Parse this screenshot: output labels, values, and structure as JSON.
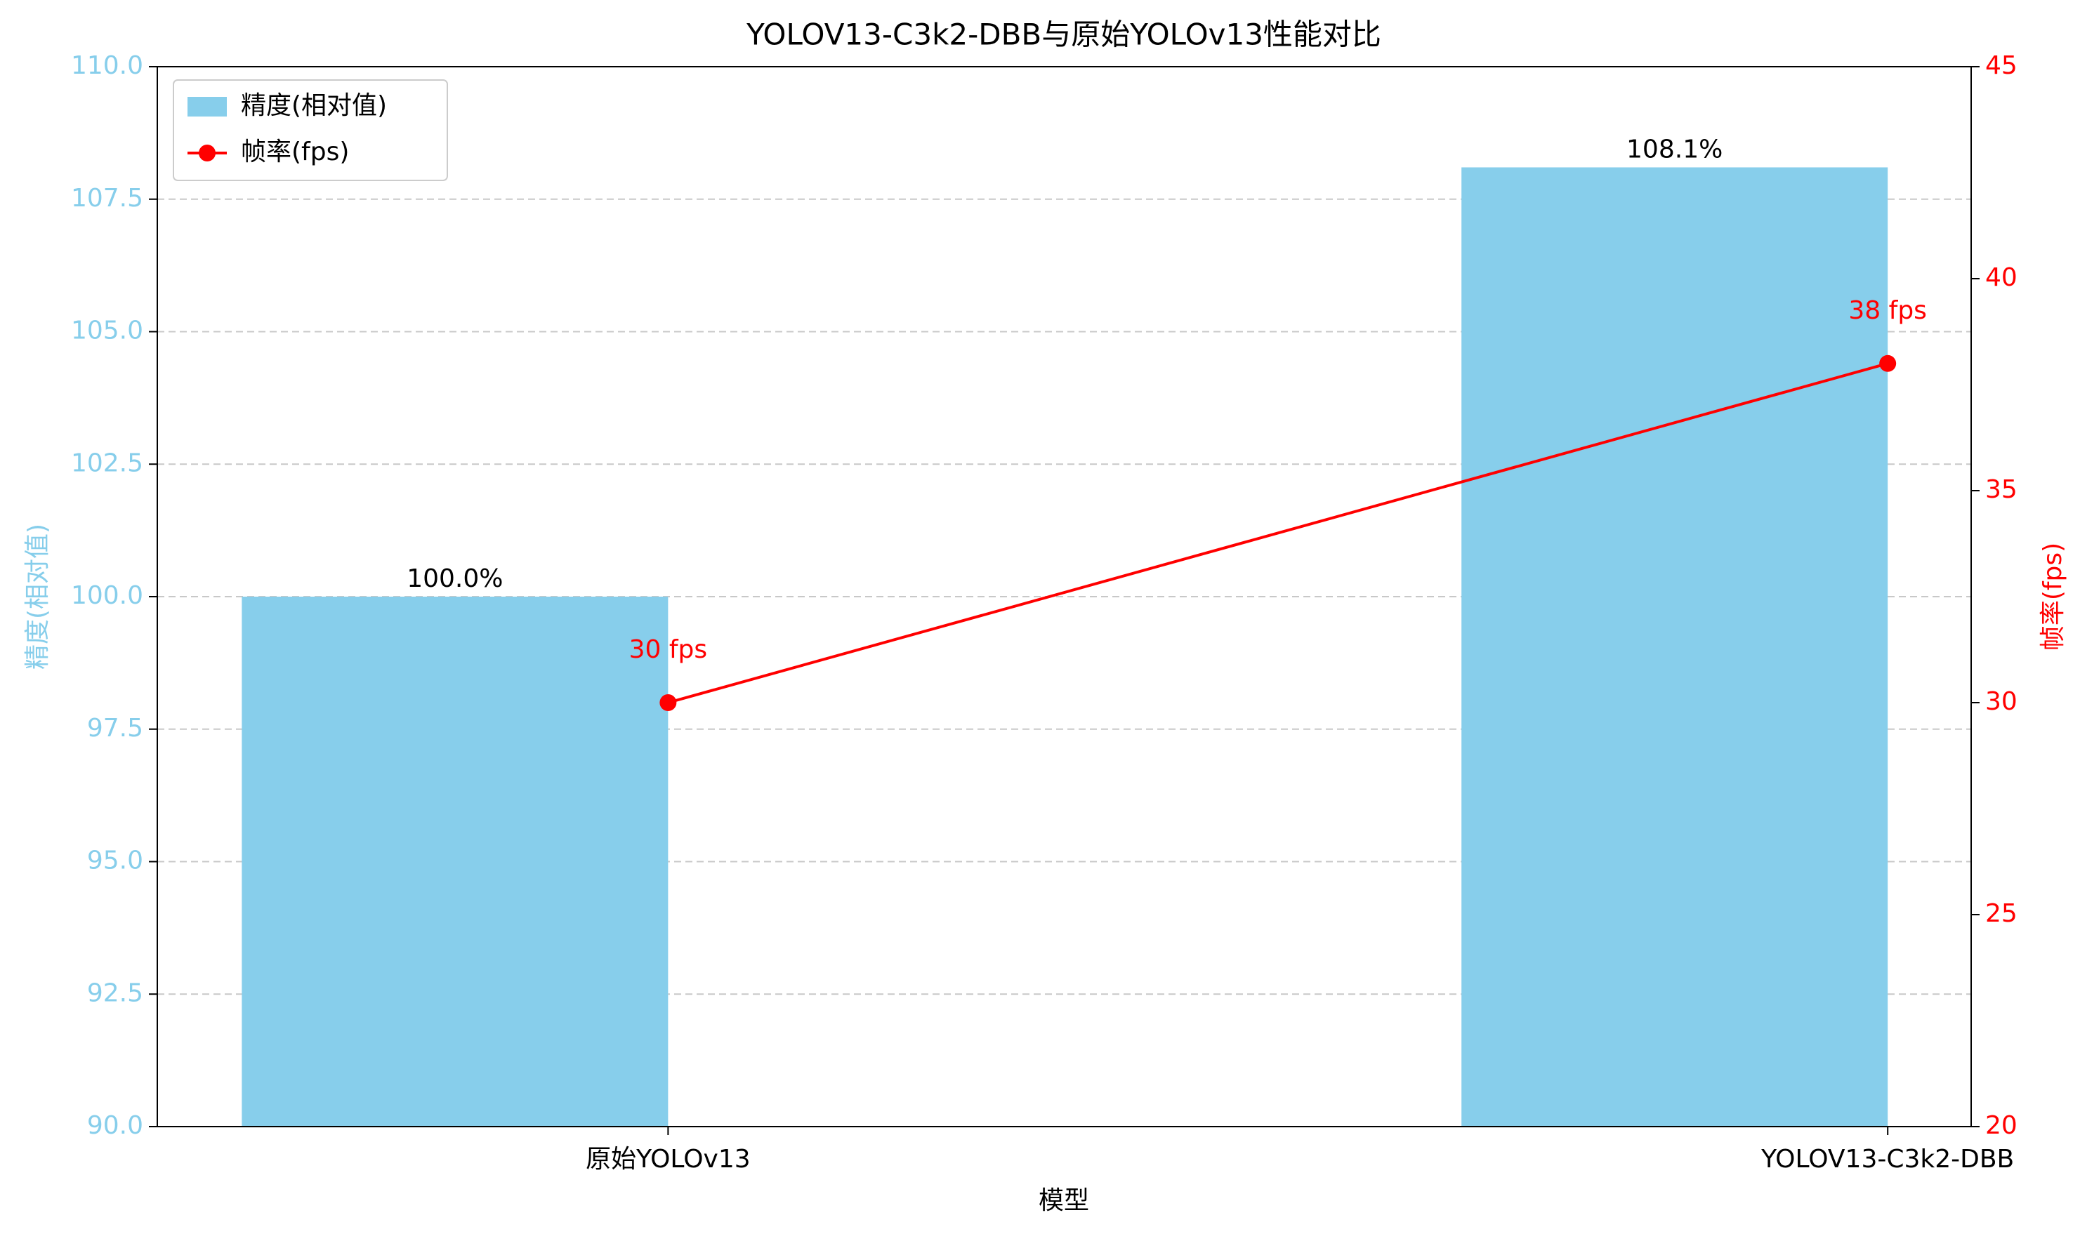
{
  "chart_data": {
    "type": "bar",
    "title": "YOLOV13-C3k2-DBB与原始YOLOv13性能对比",
    "x_label": "模型",
    "y_label": "精度(相对值)",
    "y2_label": "帧率(fps)",
    "categories": [
      "原始YOLOv13",
      "YOLOV13-C3k2-DBB"
    ],
    "series": [
      {
        "name": "精度(相对值)",
        "type": "bar",
        "color": "#87ceeb",
        "values": [
          100.0,
          108.1
        ],
        "value_labels": [
          "100.0%",
          "108.1%"
        ]
      },
      {
        "name": "帧率(fps)",
        "type": "line",
        "axis": "y2",
        "color": "#ff0000",
        "values": [
          30,
          38
        ],
        "value_labels": [
          "30 fps",
          "38 fps"
        ]
      }
    ],
    "ylim": [
      90,
      110
    ],
    "yticks": [
      {
        "value": 90,
        "label": "90.0"
      },
      92.5,
      {
        "value": 95,
        "label": "95.0"
      },
      97.5,
      {
        "value": 100,
        "label": "100.0"
      },
      102.5,
      {
        "value": 105,
        "label": "105.0"
      },
      107.5,
      {
        "value": 110,
        "label": "110.0"
      }
    ],
    "y2lim": [
      20,
      45
    ],
    "y2ticks": [
      20,
      25,
      30,
      35,
      40,
      45
    ],
    "y_color": "#87ceeb",
    "y2_color": "#ff0000",
    "grid": true,
    "legend": "upper left"
  }
}
